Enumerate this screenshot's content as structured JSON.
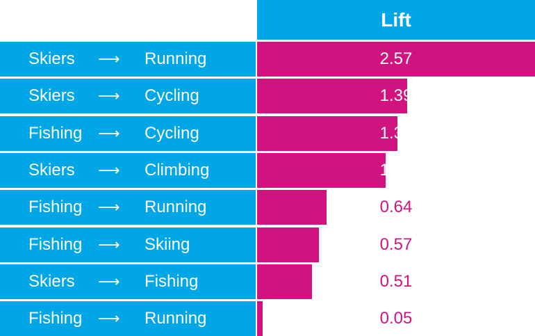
{
  "colors": {
    "label_bg": "#00a6e6",
    "bar": "#d0137f",
    "text_light": "#ffffff",
    "text_dark": "#d0137f"
  },
  "arrow_glyph": "⟶",
  "chart_data": {
    "type": "bar",
    "orientation": "horizontal",
    "column_header": "Lift",
    "xlim": [
      0,
      2.57
    ],
    "rows": [
      {
        "from": "Skiers",
        "to": "Running",
        "value": 2.57,
        "label": "2.57"
      },
      {
        "from": "Skiers",
        "to": "Cycling",
        "value": 1.39,
        "label": "1.39"
      },
      {
        "from": "Fishing",
        "to": "Cycling",
        "value": 1.3,
        "label": "1.30"
      },
      {
        "from": "Skiers",
        "to": "Climbing",
        "value": 1.19,
        "label": "1.19"
      },
      {
        "from": "Fishing",
        "to": "Running",
        "value": 0.64,
        "label": "0.64"
      },
      {
        "from": "Fishing",
        "to": "Skiing",
        "value": 0.57,
        "label": "0.57"
      },
      {
        "from": "Skiers",
        "to": "Fishing",
        "value": 0.51,
        "label": "0.51"
      },
      {
        "from": "Fishing",
        "to": "Running",
        "value": 0.05,
        "label": "0.05"
      }
    ]
  }
}
